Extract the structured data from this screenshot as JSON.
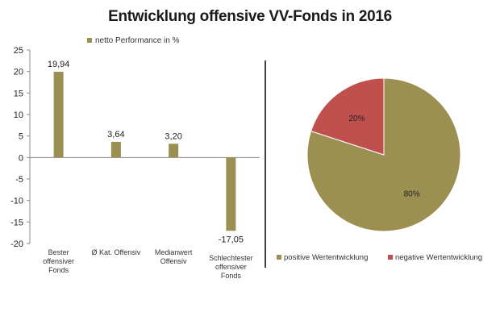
{
  "title": "Entwicklung offensive VV-Fonds in 2016",
  "colors": {
    "bar": "#9c8f52",
    "positive": "#9c8f52",
    "negative": "#c0504d",
    "axis": "#8a8a8a",
    "divider": "#000000"
  },
  "chart_data": [
    {
      "type": "bar",
      "legend": [
        "netto Performance in %"
      ],
      "legend_position": "top",
      "categories": [
        [
          "Bester",
          "offensiver",
          "Fonds"
        ],
        [
          "Ø Kat. Offensiv"
        ],
        [
          "Medianwert",
          "Offensiv"
        ],
        [
          "Schlechtester",
          "offensiver",
          "Fonds"
        ]
      ],
      "series": [
        {
          "name": "netto Performance in %",
          "values": [
            19.94,
            3.64,
            3.2,
            -17.05
          ]
        }
      ],
      "data_labels": [
        "19,94",
        "3,64",
        "3,20",
        "-17,05"
      ],
      "yticks": [
        25,
        20,
        15,
        10,
        5,
        0,
        -5,
        -10,
        -15,
        -20
      ],
      "ylim": [
        -20,
        25
      ],
      "grid": false
    },
    {
      "type": "pie",
      "slices": [
        {
          "label": "positive Wertentwicklung",
          "value": 80,
          "text": "80%"
        },
        {
          "label": "negative Wertentwicklung",
          "value": 20,
          "text": "20%"
        }
      ],
      "legend_position": "bottom"
    }
  ]
}
